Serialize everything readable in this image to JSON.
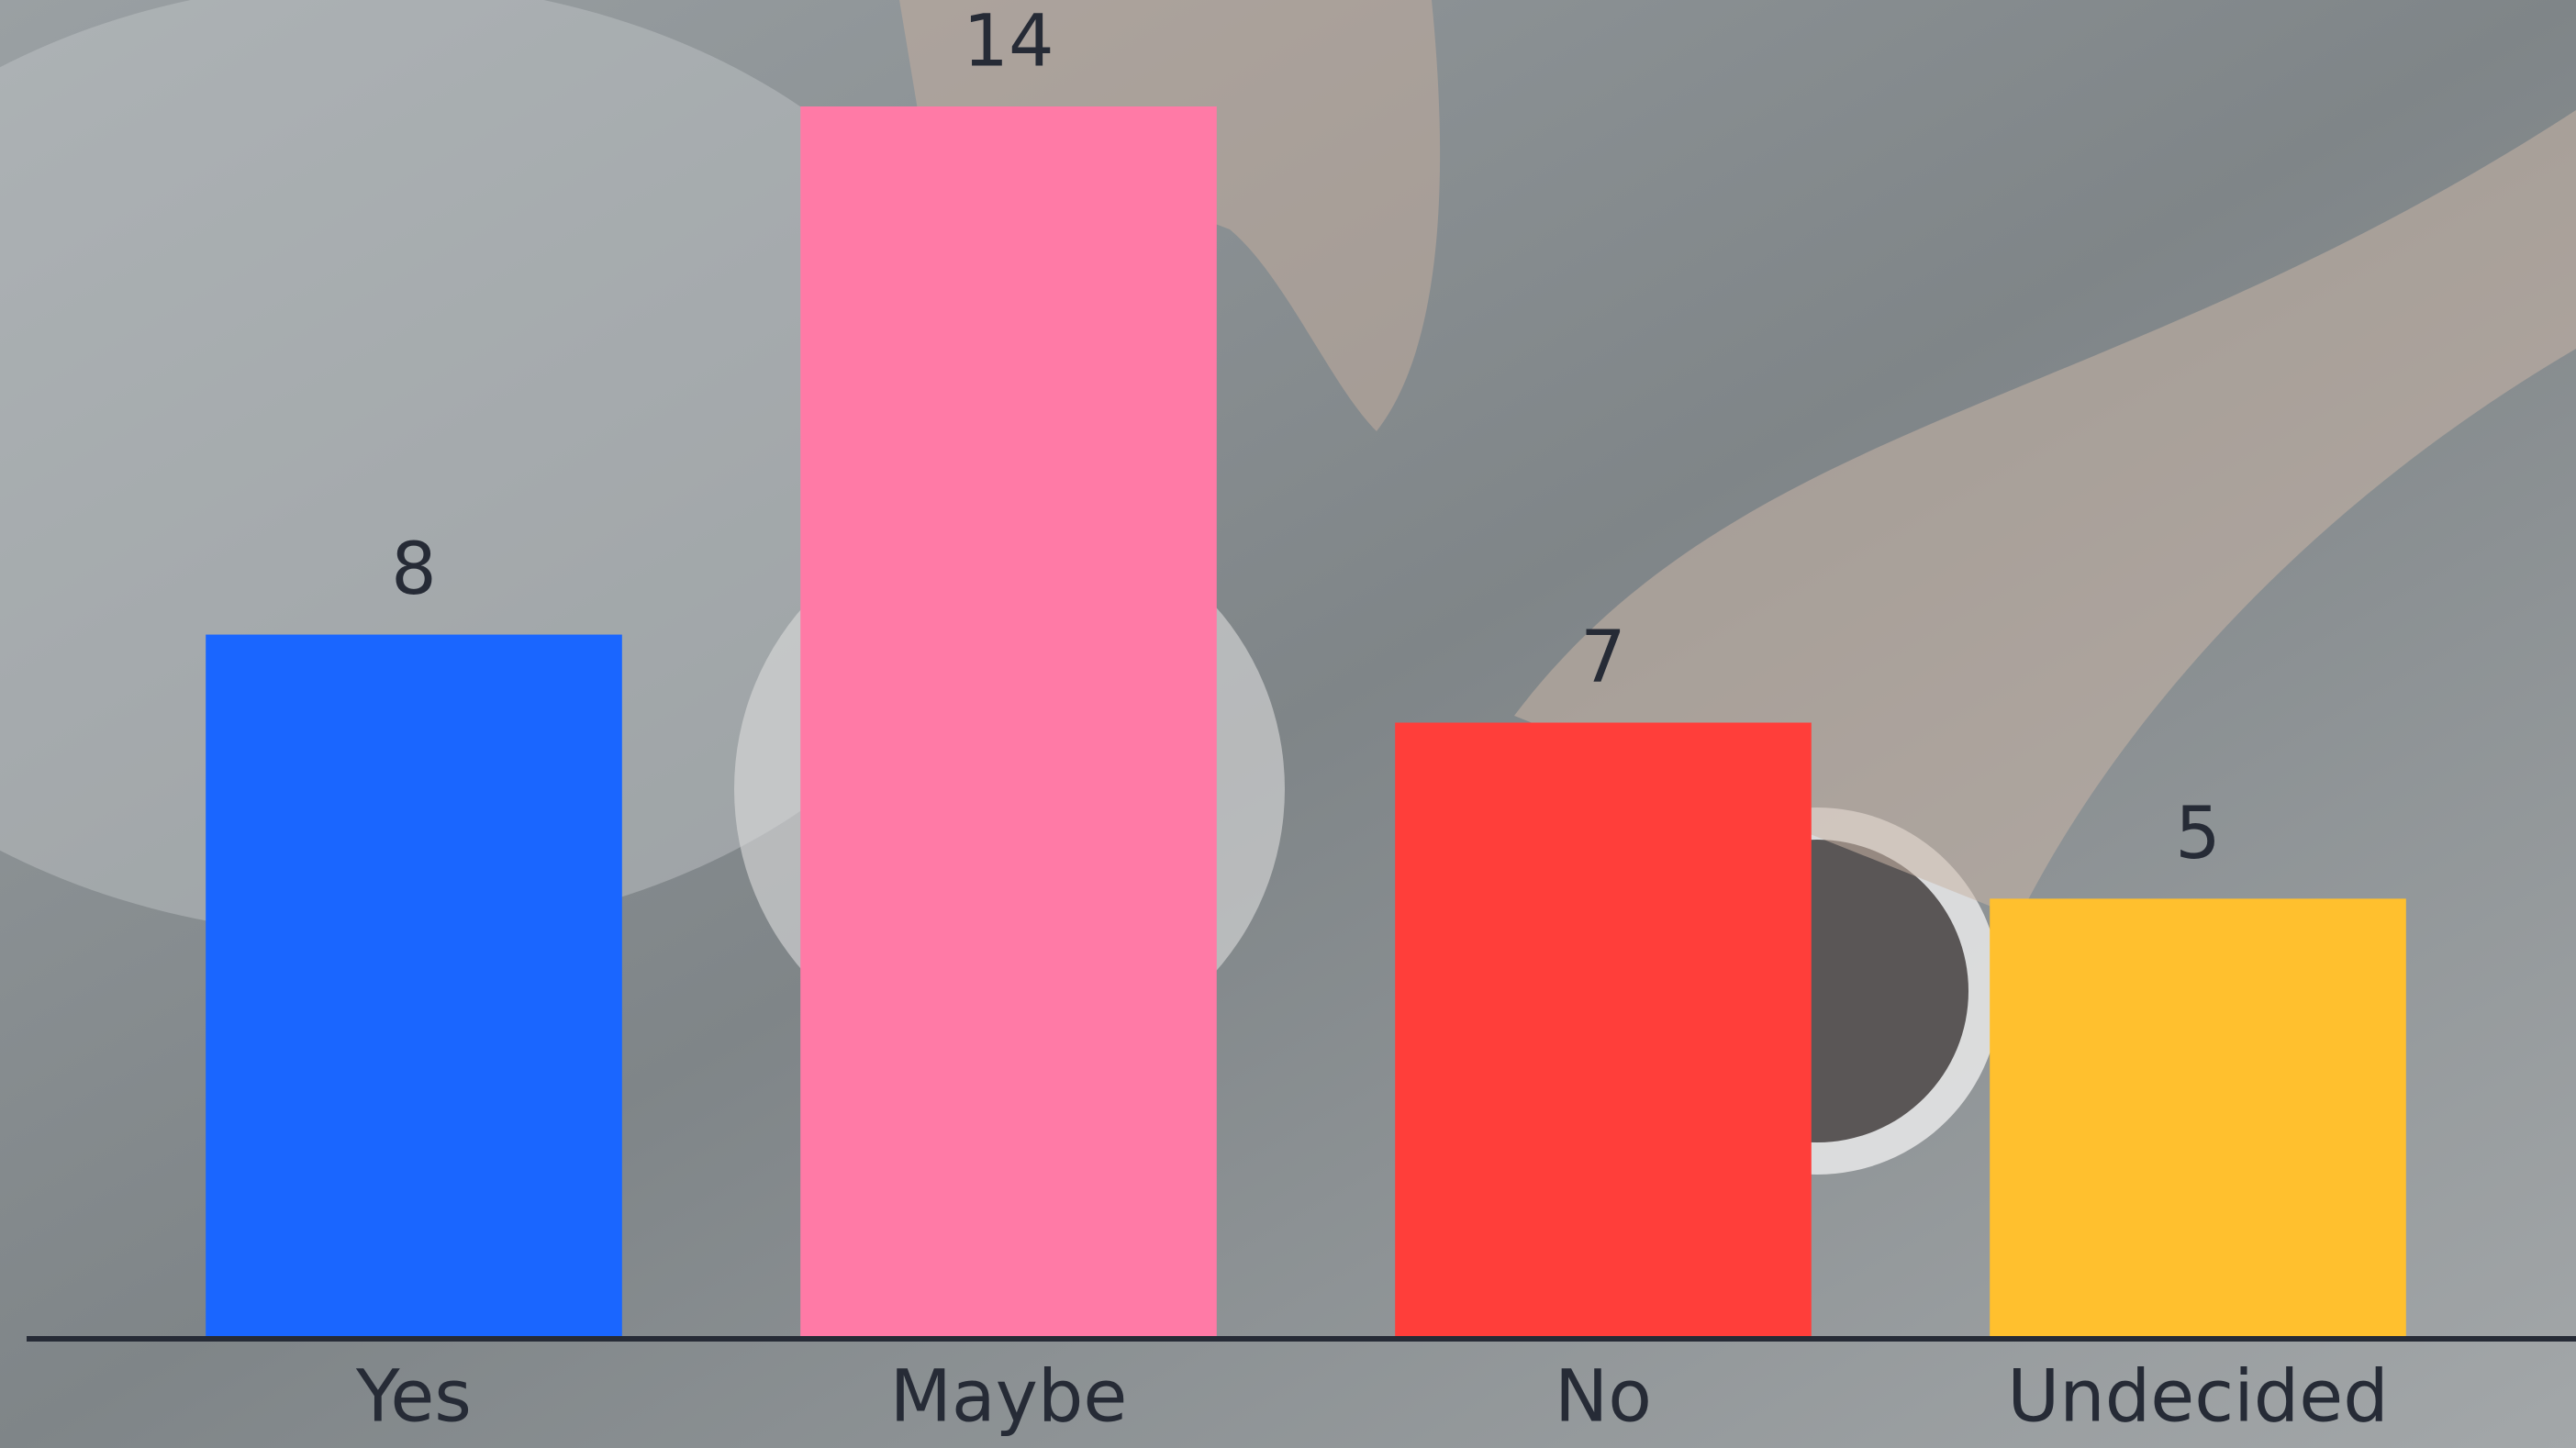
{
  "chart_data": {
    "type": "bar",
    "categories": [
      "Yes",
      "Maybe",
      "No",
      "Undecided"
    ],
    "values": [
      8,
      14,
      7,
      5
    ],
    "colors": [
      "#1a66ff",
      "#ff7aa6",
      "#ff3e3a",
      "#ffc02e"
    ]
  }
}
